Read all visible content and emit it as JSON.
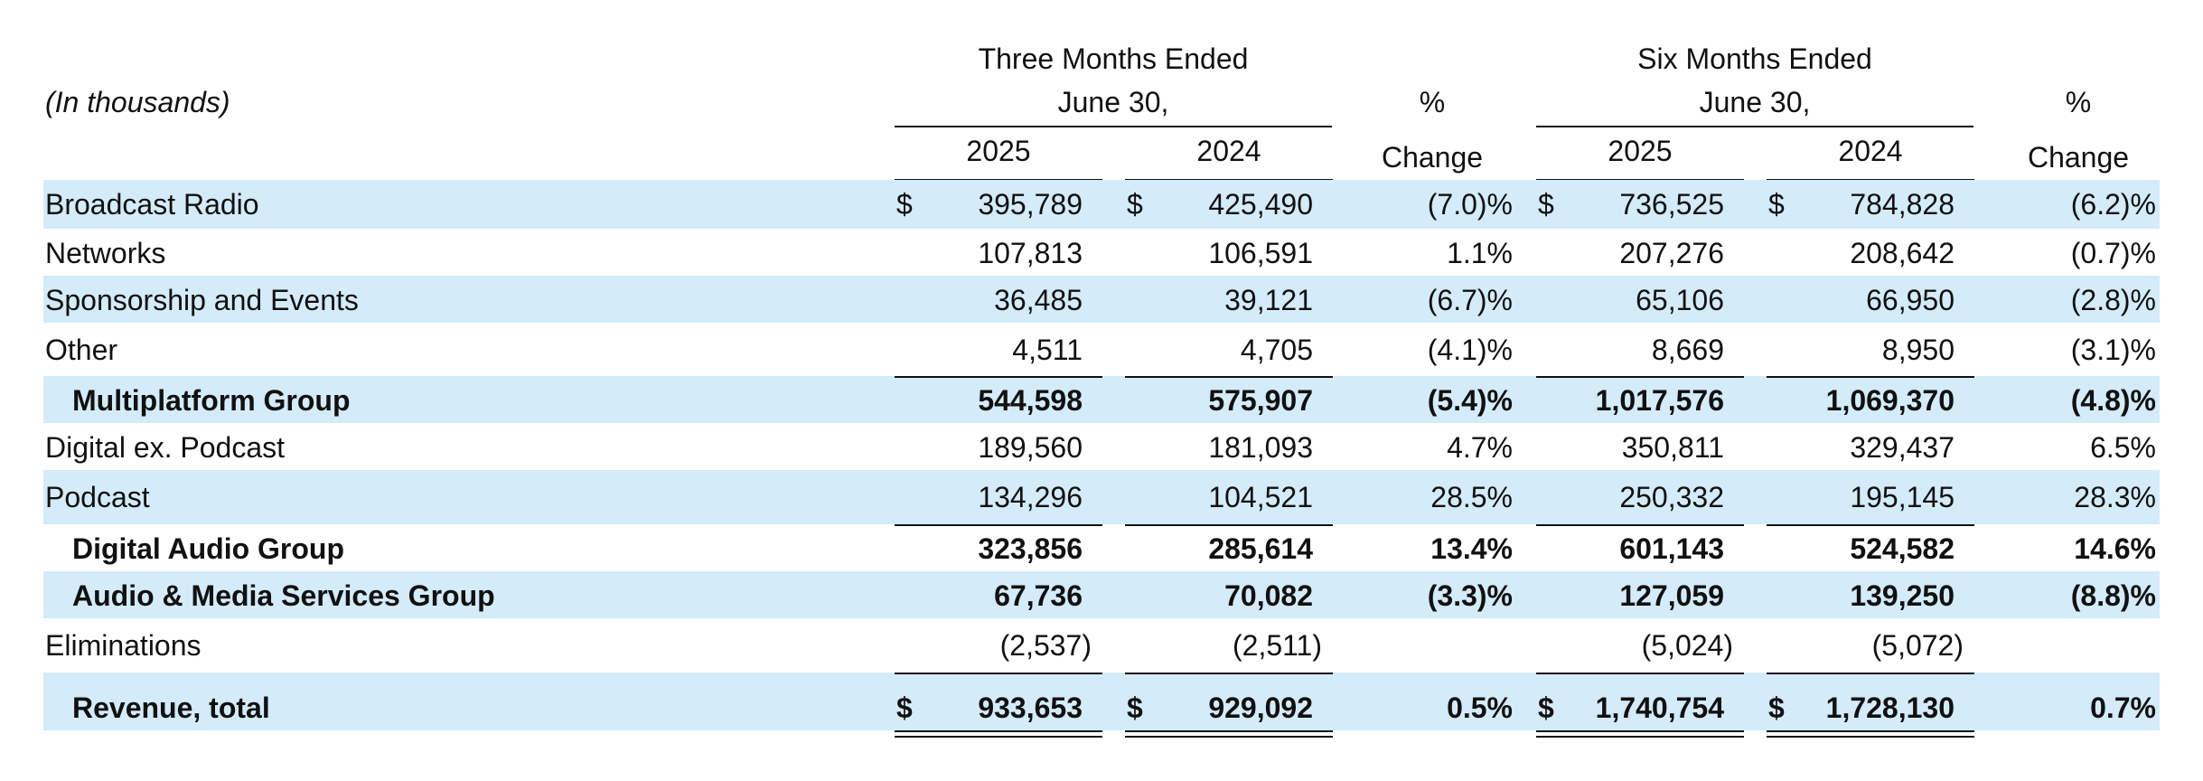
{
  "table": {
    "unit_label": "(In thousands)",
    "header": {
      "three_months": "Three Months Ended",
      "six_months": "Six Months Ended",
      "date": "June 30,",
      "pct_top": "%",
      "pct_bottom": "Change",
      "year_current": "2025",
      "year_prior": "2024"
    },
    "currency": "$",
    "rows": [
      {
        "label": "Broadcast Radio",
        "q25": "395,789",
        "q24": "425,490",
        "qchg": "(7.0)%",
        "h25": "736,525",
        "h24": "784,828",
        "hchg": "(6.2)%",
        "dollar": true,
        "bold": false,
        "indent": false,
        "shaded": true
      },
      {
        "label": "Networks",
        "q25": "107,813",
        "q24": "106,591",
        "qchg": "1.1%",
        "h25": "207,276",
        "h24": "208,642",
        "hchg": "(0.7)%",
        "dollar": false,
        "bold": false,
        "indent": false,
        "shaded": false
      },
      {
        "label": "Sponsorship and Events",
        "q25": "36,485",
        "q24": "39,121",
        "qchg": "(6.7)%",
        "h25": "65,106",
        "h24": "66,950",
        "hchg": "(2.8)%",
        "dollar": false,
        "bold": false,
        "indent": false,
        "shaded": true
      },
      {
        "label": "Other",
        "q25": "4,511",
        "q24": "4,705",
        "qchg": "(4.1)%",
        "h25": "8,669",
        "h24": "8,950",
        "hchg": "(3.1)%",
        "dollar": false,
        "bold": false,
        "indent": false,
        "shaded": false
      },
      {
        "label": "Multiplatform Group",
        "q25": "544,598",
        "q24": "575,907",
        "qchg": "(5.4)%",
        "h25": "1,017,576",
        "h24": "1,069,370",
        "hchg": "(4.8)%",
        "dollar": false,
        "bold": true,
        "indent": true,
        "shaded": true
      },
      {
        "label": "Digital ex. Podcast",
        "q25": "189,560",
        "q24": "181,093",
        "qchg": "4.7%",
        "h25": "350,811",
        "h24": "329,437",
        "hchg": "6.5%",
        "dollar": false,
        "bold": false,
        "indent": false,
        "shaded": false
      },
      {
        "label": "Podcast",
        "q25": "134,296",
        "q24": "104,521",
        "qchg": "28.5%",
        "h25": "250,332",
        "h24": "195,145",
        "hchg": "28.3%",
        "dollar": false,
        "bold": false,
        "indent": false,
        "shaded": true
      },
      {
        "label": "Digital Audio Group",
        "q25": "323,856",
        "q24": "285,614",
        "qchg": "13.4%",
        "h25": "601,143",
        "h24": "524,582",
        "hchg": "14.6%",
        "dollar": false,
        "bold": true,
        "indent": true,
        "shaded": false
      },
      {
        "label": "Audio & Media Services Group",
        "q25": "67,736",
        "q24": "70,082",
        "qchg": "(3.3)%",
        "h25": "127,059",
        "h24": "139,250",
        "hchg": "(8.8)%",
        "dollar": false,
        "bold": true,
        "indent": true,
        "shaded": true
      },
      {
        "label": "Eliminations",
        "q25": "(2,537)",
        "q24": "(2,511)",
        "qchg": "",
        "h25": "(5,024)",
        "h24": "(5,072)",
        "hchg": "",
        "dollar": false,
        "bold": false,
        "indent": false,
        "shaded": false
      },
      {
        "label": "Revenue, total",
        "q25": "933,653",
        "q24": "929,092",
        "qchg": "0.5%",
        "h25": "1,740,754",
        "h24": "1,728,130",
        "hchg": "0.7%",
        "dollar": true,
        "bold": true,
        "indent": true,
        "shaded": true
      }
    ]
  }
}
